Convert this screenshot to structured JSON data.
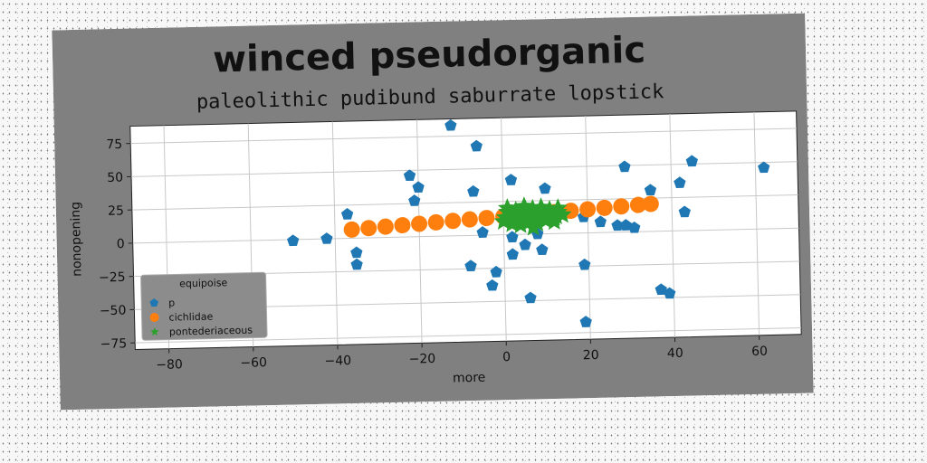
{
  "chart_data": {
    "type": "scatter",
    "title": "winced pseudorganic",
    "subtitle": "paleolithic pudibund saburrate lopstick",
    "xlabel": "more",
    "ylabel": "nonopening",
    "xlim": [
      -88,
      70
    ],
    "ylim": [
      -80,
      88
    ],
    "xticks": [
      -80,
      -60,
      -40,
      -20,
      0,
      20,
      40,
      60
    ],
    "yticks": [
      -75,
      -50,
      -25,
      0,
      25,
      50,
      75
    ],
    "grid": true,
    "legend": {
      "title": "equipoise",
      "placement": "bottom-left",
      "entries": [
        "p",
        "cichlidae",
        "pontederiaceous"
      ]
    },
    "colors": {
      "p": "#1f77b4",
      "cichlidae": "#ff7f0e",
      "pontederiaceous": "#2ca02c",
      "frame": "#808080"
    },
    "series": [
      {
        "name": "p",
        "marker": "pentagon",
        "x": [
          -12,
          -6,
          45,
          29,
          62,
          -22,
          2,
          10,
          42,
          -7,
          -20,
          -21,
          -37,
          43,
          19,
          35,
          23,
          27,
          29,
          31,
          -50,
          -42,
          -35,
          -35,
          -2,
          2,
          6,
          9,
          -8,
          -3,
          2,
          19,
          39,
          -5,
          8,
          5,
          37,
          -83,
          19
        ],
        "y": [
          83,
          67,
          52,
          49,
          46,
          46,
          41,
          34,
          36,
          33,
          37,
          27,
          18,
          14,
          12,
          31,
          8,
          5,
          5,
          3,
          -1,
          0,
          -11,
          -20,
          -28,
          -15,
          -48,
          -12,
          -23,
          -38,
          -2,
          -24,
          -47,
          2,
          0,
          -8,
          -44,
          -31,
          -67
        ]
      },
      {
        "name": "cichlidae",
        "marker": "circle",
        "x": [
          -36,
          -32,
          -28,
          -24,
          -20,
          -16,
          -12,
          -8,
          -4,
          0,
          4,
          8,
          12,
          16,
          20,
          24,
          28,
          32,
          35
        ],
        "y": [
          6.5,
          7.3,
          8.1,
          8.9,
          9.7,
          10.5,
          11.3,
          12.1,
          12.9,
          13.7,
          14.5,
          15.3,
          16.1,
          16.9,
          17.7,
          18.5,
          19.3,
          20.1,
          20.7
        ]
      },
      {
        "name": "pontederiaceous",
        "marker": "star",
        "x": [
          0,
          2,
          4,
          6,
          8,
          10,
          12,
          14,
          1,
          3,
          5,
          7,
          9,
          11,
          13,
          2,
          4,
          6,
          8,
          10,
          12,
          0.5,
          3.5,
          6.5,
          9.5,
          12.5,
          1,
          5,
          9,
          13,
          7
        ],
        "y": [
          10,
          12,
          14,
          11,
          13,
          15,
          12,
          14,
          17,
          18,
          16,
          19,
          17,
          18,
          16,
          8,
          7,
          9,
          8,
          10,
          9,
          13,
          15,
          14,
          12,
          13,
          20,
          21,
          20,
          19,
          5
        ]
      }
    ]
  }
}
